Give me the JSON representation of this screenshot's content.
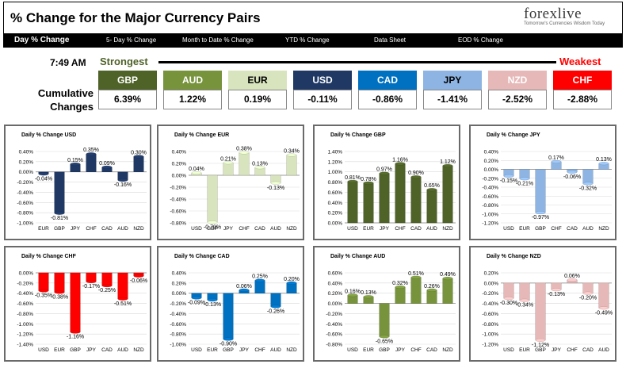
{
  "header": {
    "title": "% Change for the Major Currency Pairs",
    "logo": "forexlive",
    "logo_x": "",
    "logo_tag": "Tomorrow's Currencies Wisdom Today"
  },
  "nav": {
    "items": [
      "Day % Change",
      "5- Day % Change",
      "Month to Date % Change",
      "YTD % Change",
      "Data Sheet",
      "EOD % Change"
    ]
  },
  "summary": {
    "time": "7:49 AM",
    "strongest_label": "Strongest",
    "weakest_label": "Weakest",
    "cumulative_label_1": "Cumulative",
    "cumulative_label_2": "Changes",
    "currencies": [
      {
        "code": "GBP",
        "value": "6.39%",
        "color": "#4f6228",
        "text": "#ffffff"
      },
      {
        "code": "AUD",
        "value": "1.22%",
        "color": "#77933c",
        "text": "#ffffff"
      },
      {
        "code": "EUR",
        "value": "0.19%",
        "color": "#d7e4bd",
        "text": "#000000"
      },
      {
        "code": "USD",
        "value": "-0.11%",
        "color": "#1f3864",
        "text": "#ffffff"
      },
      {
        "code": "CAD",
        "value": "-0.86%",
        "color": "#0070c0",
        "text": "#ffffff"
      },
      {
        "code": "JPY",
        "value": "-1.41%",
        "color": "#8db4e2",
        "text": "#000000"
      },
      {
        "code": "NZD",
        "value": "-2.52%",
        "color": "#e6b9b8",
        "text": "#ffffff"
      },
      {
        "code": "CHF",
        "value": "-2.88%",
        "color": "#ff0000",
        "text": "#ffffff"
      }
    ]
  },
  "chart_data": [
    {
      "type": "bar",
      "title": "Daily % Change USD",
      "color": "#1f3864",
      "categories": [
        "EUR",
        "GBP",
        "JPY",
        "CHF",
        "CAD",
        "AUD",
        "NZD"
      ],
      "values": [
        -0.04,
        -0.81,
        0.15,
        0.35,
        0.09,
        -0.16,
        0.3
      ],
      "value_labels": [
        "-0.04%",
        "-0.81%",
        "0.15%",
        "0.35%",
        "0.09%",
        "-0.16%",
        "0.30%"
      ],
      "ylim": [
        -1.0,
        0.4
      ],
      "ticks": [
        0.4,
        0.2,
        0.0,
        -0.2,
        -0.4,
        -0.6,
        -0.8,
        -1.0
      ],
      "tick_labels": [
        "0.40%",
        "0.20%",
        "0.00%",
        "-0.20%",
        "-0.40%",
        "-0.60%",
        "-0.80%",
        "-1.00%"
      ]
    },
    {
      "type": "bar",
      "title": "Daily % Change EUR",
      "color": "#d7e4bd",
      "categories": [
        "USD",
        "GBP",
        "JPY",
        "CHF",
        "CAD",
        "AUD",
        "NZD"
      ],
      "values": [
        0.04,
        -0.79,
        0.21,
        0.38,
        0.13,
        -0.13,
        0.34
      ],
      "value_labels": [
        "0.04%",
        "-0.79%",
        "0.21%",
        "0.38%",
        "0.13%",
        "-0.13%",
        "0.34%"
      ],
      "ylim": [
        -0.8,
        0.4
      ],
      "ticks": [
        0.4,
        0.2,
        0.0,
        -0.2,
        -0.4,
        -0.6,
        -0.8
      ],
      "tick_labels": [
        "0.40%",
        "0.20%",
        "0.00%",
        "-0.20%",
        "-0.40%",
        "-0.60%",
        "-0.80%"
      ]
    },
    {
      "type": "bar",
      "title": "Daily % Change GBP",
      "color": "#4f6228",
      "categories": [
        "USD",
        "EUR",
        "JPY",
        "CHF",
        "CAD",
        "AUD",
        "NZD"
      ],
      "values": [
        0.81,
        0.78,
        0.97,
        1.16,
        0.9,
        0.65,
        1.12
      ],
      "value_labels": [
        "0.81%",
        "0.78%",
        "0.97%",
        "1.16%",
        "0.90%",
        "0.65%",
        "1.12%"
      ],
      "ylim": [
        0.0,
        1.4
      ],
      "ticks": [
        1.4,
        1.2,
        1.0,
        0.8,
        0.6,
        0.4,
        0.2,
        0.0
      ],
      "tick_labels": [
        "1.40%",
        "1.20%",
        "1.00%",
        "0.80%",
        "0.60%",
        "0.40%",
        "0.20%",
        "0.00%"
      ]
    },
    {
      "type": "bar",
      "title": "Daily % Change JPY",
      "color": "#8db4e2",
      "categories": [
        "USD",
        "EUR",
        "GBP",
        "CHF",
        "CAD",
        "AUD",
        "NZD"
      ],
      "values": [
        -0.15,
        -0.21,
        -0.97,
        0.17,
        -0.06,
        -0.32,
        0.13
      ],
      "value_labels": [
        "-0.15%",
        "-0.21%",
        "-0.97%",
        "0.17%",
        "-0.06%",
        "-0.32%",
        "0.13%"
      ],
      "ylim": [
        -1.2,
        0.4
      ],
      "ticks": [
        0.4,
        0.2,
        0.0,
        -0.2,
        -0.4,
        -0.6,
        -0.8,
        -1.0,
        -1.2
      ],
      "tick_labels": [
        "0.40%",
        "0.20%",
        "0.00%",
        "-0.20%",
        "-0.40%",
        "-0.60%",
        "-0.80%",
        "-1.00%",
        "-1.20%"
      ]
    },
    {
      "type": "bar",
      "title": "Daily % Change CHF",
      "color": "#ff0000",
      "categories": [
        "USD",
        "EUR",
        "GBP",
        "JPY",
        "CAD",
        "AUD",
        "NZD"
      ],
      "values": [
        -0.35,
        -0.38,
        -1.16,
        -0.17,
        -0.25,
        -0.51,
        -0.06
      ],
      "value_labels": [
        "-0.35%",
        "-0.38%",
        "-1.16%",
        "-0.17%",
        "-0.25%",
        "-0.51%",
        "-0.06%"
      ],
      "ylim": [
        -1.4,
        0.0
      ],
      "ticks": [
        0.0,
        -0.2,
        -0.4,
        -0.6,
        -0.8,
        -1.0,
        -1.2,
        -1.4
      ],
      "tick_labels": [
        "0.00%",
        "-0.20%",
        "-0.40%",
        "-0.60%",
        "-0.80%",
        "-1.00%",
        "-1.20%",
        "-1.40%"
      ]
    },
    {
      "type": "bar",
      "title": "Daily % Change CAD",
      "color": "#0070c0",
      "categories": [
        "USD",
        "EUR",
        "GBP",
        "JPY",
        "CHF",
        "AUD",
        "NZD"
      ],
      "values": [
        -0.09,
        -0.13,
        -0.9,
        0.06,
        0.25,
        -0.26,
        0.2
      ],
      "value_labels": [
        "-0.09%",
        "-0.13%",
        "-0.90%",
        "0.06%",
        "0.25%",
        "-0.26%",
        "0.20%"
      ],
      "ylim": [
        -1.0,
        0.4
      ],
      "ticks": [
        0.4,
        0.2,
        0.0,
        -0.2,
        -0.4,
        -0.6,
        -0.8,
        -1.0
      ],
      "tick_labels": [
        "0.40%",
        "0.20%",
        "0.00%",
        "-0.20%",
        "-0.40%",
        "-0.60%",
        "-0.80%",
        "-1.00%"
      ]
    },
    {
      "type": "bar",
      "title": "Daily % Change AUD",
      "color": "#77933c",
      "categories": [
        "USD",
        "EUR",
        "GBP",
        "JPY",
        "CHF",
        "CAD",
        "NZD"
      ],
      "values": [
        0.16,
        0.13,
        -0.65,
        0.32,
        0.51,
        0.26,
        0.49
      ],
      "value_labels": [
        "0.16%",
        "0.13%",
        "-0.65%",
        "0.32%",
        "0.51%",
        "0.26%",
        "0.49%"
      ],
      "ylim": [
        -0.8,
        0.6
      ],
      "ticks": [
        0.6,
        0.4,
        0.2,
        0.0,
        -0.2,
        -0.4,
        -0.6,
        -0.8
      ],
      "tick_labels": [
        "0.60%",
        "0.40%",
        "0.20%",
        "0.00%",
        "-0.20%",
        "-0.40%",
        "-0.60%",
        "-0.80%"
      ]
    },
    {
      "type": "bar",
      "title": "Daily % Change NZD",
      "color": "#e6b9b8",
      "categories": [
        "USD",
        "EUR",
        "GBP",
        "JPY",
        "CHF",
        "CAD",
        "AUD"
      ],
      "values": [
        -0.3,
        -0.34,
        -1.12,
        -0.13,
        0.06,
        -0.2,
        -0.49
      ],
      "value_labels": [
        "-0.30%",
        "-0.34%",
        "-1.12%",
        "-0.13%",
        "0.06%",
        "-0.20%",
        "-0.49%"
      ],
      "ylim": [
        -1.2,
        0.2
      ],
      "ticks": [
        0.2,
        0.0,
        -0.2,
        -0.4,
        -0.6,
        -0.8,
        -1.0,
        -1.2
      ],
      "tick_labels": [
        "0.20%",
        "0.00%",
        "-0.20%",
        "-0.40%",
        "-0.60%",
        "-0.80%",
        "-1.00%",
        "-1.20%"
      ]
    }
  ]
}
